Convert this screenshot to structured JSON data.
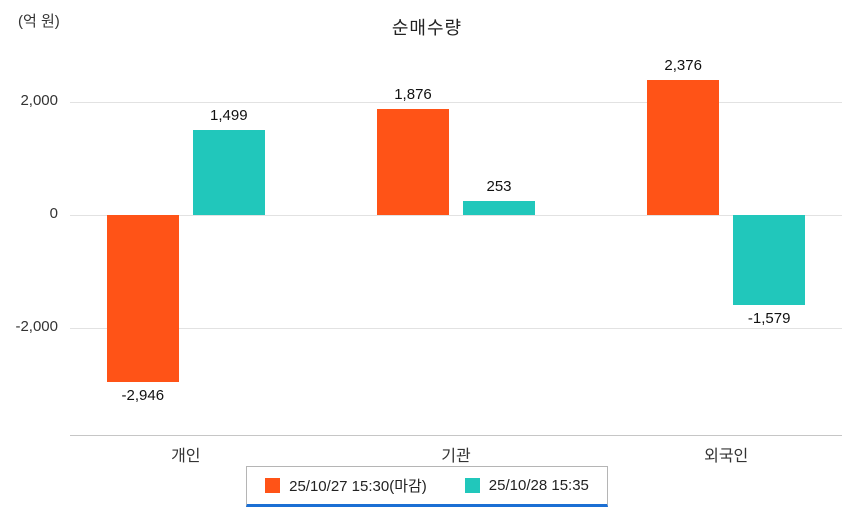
{
  "header": {
    "unit_label": "(억 원)",
    "title": "순매수량"
  },
  "chart_data": {
    "type": "bar",
    "title": "순매수량",
    "ylabel": "(억 원)",
    "categories": [
      "개인",
      "기관",
      "외국인"
    ],
    "series": [
      {
        "name": "25/10/27 15:30(마감)",
        "color": "#FF5317",
        "values": [
          -2946,
          1876,
          2376
        ]
      },
      {
        "name": "25/10/28 15:35",
        "color": "#21C7BB",
        "values": [
          1499,
          253,
          -1579
        ]
      }
    ],
    "value_labels": [
      [
        "-2,946",
        "1,876",
        "2,376"
      ],
      [
        "1,499",
        "253",
        "-1,579"
      ]
    ],
    "yticks": [
      2000,
      0,
      -2000
    ],
    "ytick_labels": [
      "2,000",
      "0",
      "-2,000"
    ],
    "ylim": [
      -3900,
      2800
    ],
    "grid": true,
    "legend_position": "bottom"
  }
}
